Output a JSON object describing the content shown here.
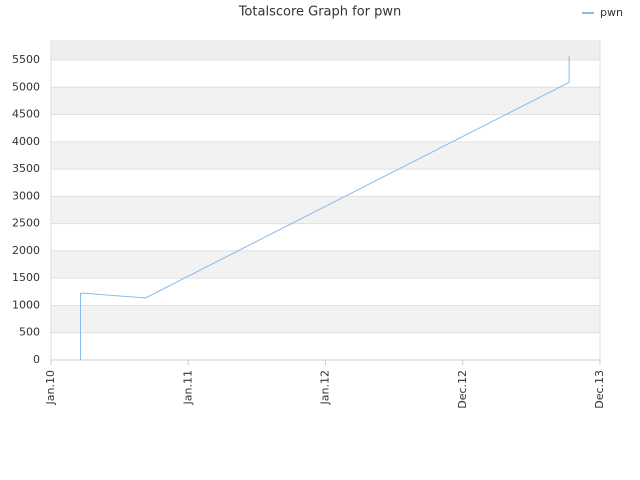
{
  "chart_data": {
    "type": "line",
    "title": "Totalscore Graph for pwn",
    "x": [
      0.215,
      0.215,
      0.23,
      0.68,
      0.69,
      3.767,
      3.775,
      3.775
    ],
    "series": [
      {
        "name": "pwn",
        "color": "#88bbee",
        "values": [
          0,
          1220,
          1225,
          1140,
          1140,
          5080,
          5100,
          5580
        ]
      }
    ],
    "xlim": [
      0,
      4
    ],
    "xticks": [
      {
        "value": 0,
        "label": "Jan.10"
      },
      {
        "value": 1,
        "label": "Jan.11"
      },
      {
        "value": 2,
        "label": "Jan.12"
      },
      {
        "value": 3,
        "label": "Dec.12"
      },
      {
        "value": 4,
        "label": "Dec.13"
      }
    ],
    "ylim": [
      0,
      5867
    ],
    "yticks": [
      0,
      500,
      1000,
      1500,
      2000,
      2500,
      3000,
      3500,
      4000,
      4500,
      5000,
      5500
    ],
    "grid": true,
    "legend": "top-right"
  }
}
